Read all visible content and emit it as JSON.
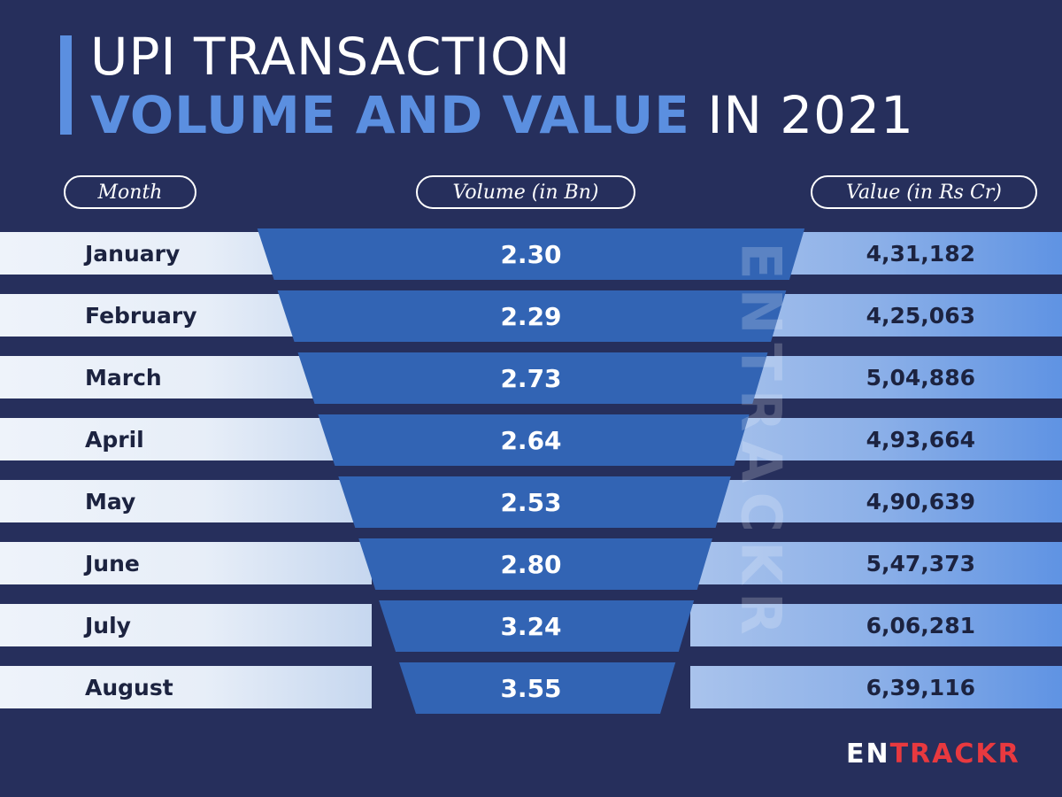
{
  "title": {
    "line1": "UPI TRANSACTION",
    "line2_bold": "VOLUME AND VALUE",
    "line2_rest": " IN 2021"
  },
  "headers": {
    "month": "Month",
    "volume": "Volume (in Bn)",
    "value": "Value (in Rs Cr)"
  },
  "chart_data": {
    "type": "table",
    "title": "UPI TRANSACTION VOLUME AND VALUE IN 2021",
    "columns": [
      "Month",
      "Volume (in Bn)",
      "Value (in Rs Cr)"
    ],
    "rows": [
      {
        "month": "January",
        "volume": "2.30",
        "value": "4,31,182"
      },
      {
        "month": "February",
        "volume": "2.29",
        "value": "4,25,063"
      },
      {
        "month": "March",
        "volume": "2.73",
        "value": "5,04,886"
      },
      {
        "month": "April",
        "volume": "2.64",
        "value": "4,93,664"
      },
      {
        "month": "May",
        "volume": "2.53",
        "value": "4,90,639"
      },
      {
        "month": "June",
        "volume": "2.80",
        "value": "5,47,373"
      },
      {
        "month": "July",
        "volume": "3.24",
        "value": "6,06,281"
      },
      {
        "month": "August",
        "volume": "3.55",
        "value": "6,39,116"
      }
    ]
  },
  "watermark": "ENTRACKR",
  "logo": {
    "en": "EN",
    "trackr": "TRACKR"
  },
  "colors": {
    "background": "#262f5c",
    "accent": "#5b8fe0",
    "funnel": "#3264b4",
    "logo_red": "#e8393f"
  }
}
